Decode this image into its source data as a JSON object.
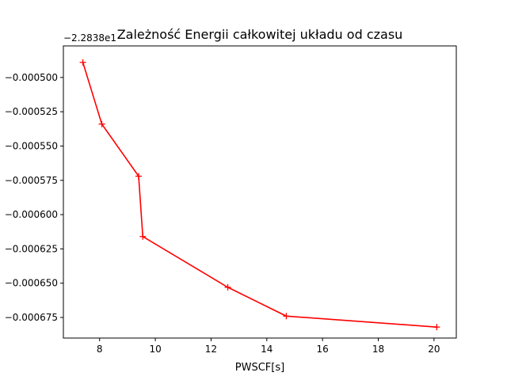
{
  "chart_data": {
    "type": "line",
    "title": "Zależność Energii całkowitej układu od czasu",
    "xlabel": "PWSCF[s]",
    "ylabel": "",
    "offset_text": "−2.2838e1",
    "xlim": [
      6.7,
      20.8
    ],
    "ylim": [
      -0.00069,
      -0.000477
    ],
    "xticks": [
      8,
      10,
      12,
      14,
      16,
      18,
      20
    ],
    "xtick_labels": [
      "8",
      "10",
      "12",
      "14",
      "16",
      "18",
      "20"
    ],
    "yticks": [
      -0.0005,
      -0.000525,
      -0.00055,
      -0.000575,
      -0.0006,
      -0.000625,
      -0.00065,
      -0.000675
    ],
    "ytick_labels": [
      "−0.000500",
      "−0.000525",
      "−0.000550",
      "−0.000575",
      "−0.000600",
      "−0.000625",
      "−0.000650",
      "−0.000675"
    ],
    "grid": false,
    "series": [
      {
        "color": "#ff0000",
        "marker": "+",
        "x": [
          7.4,
          8.08,
          9.4,
          9.55,
          12.6,
          14.7,
          20.1
        ],
        "y": [
          -0.000489,
          -0.000534,
          -0.000572,
          -0.000616,
          -0.000653,
          -0.000674,
          -0.000682
        ]
      }
    ]
  }
}
